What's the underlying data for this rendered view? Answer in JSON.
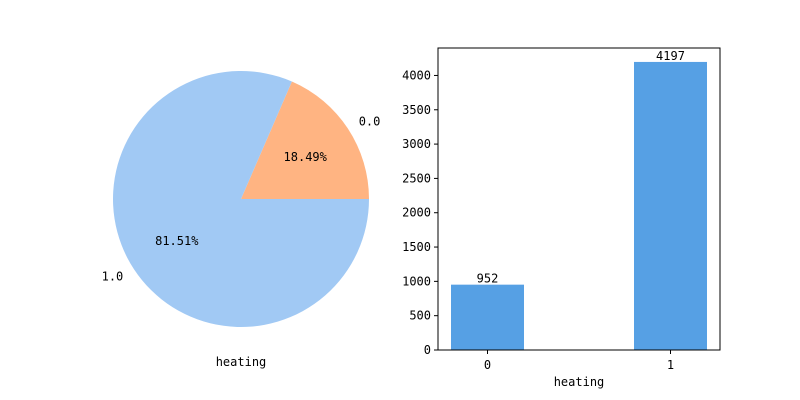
{
  "chart_data": [
    {
      "type": "pie",
      "xlabel": "heating",
      "slices": [
        {
          "label": "0.0",
          "value": 18.49,
          "pct_label": "18.49%",
          "color": "#ffb482"
        },
        {
          "label": "1.0",
          "value": 81.51,
          "pct_label": "81.51%",
          "color": "#a1c9f4"
        }
      ]
    },
    {
      "type": "bar",
      "xlabel": "heating",
      "categories": [
        "0",
        "1"
      ],
      "values": [
        952,
        4197
      ],
      "value_labels": [
        "952",
        "4197"
      ],
      "ylim": [
        0,
        4400
      ],
      "yticks": [
        0,
        500,
        1000,
        1500,
        2000,
        2500,
        3000,
        3500,
        4000
      ],
      "bar_color": "#56a0e4",
      "grid": false
    }
  ]
}
